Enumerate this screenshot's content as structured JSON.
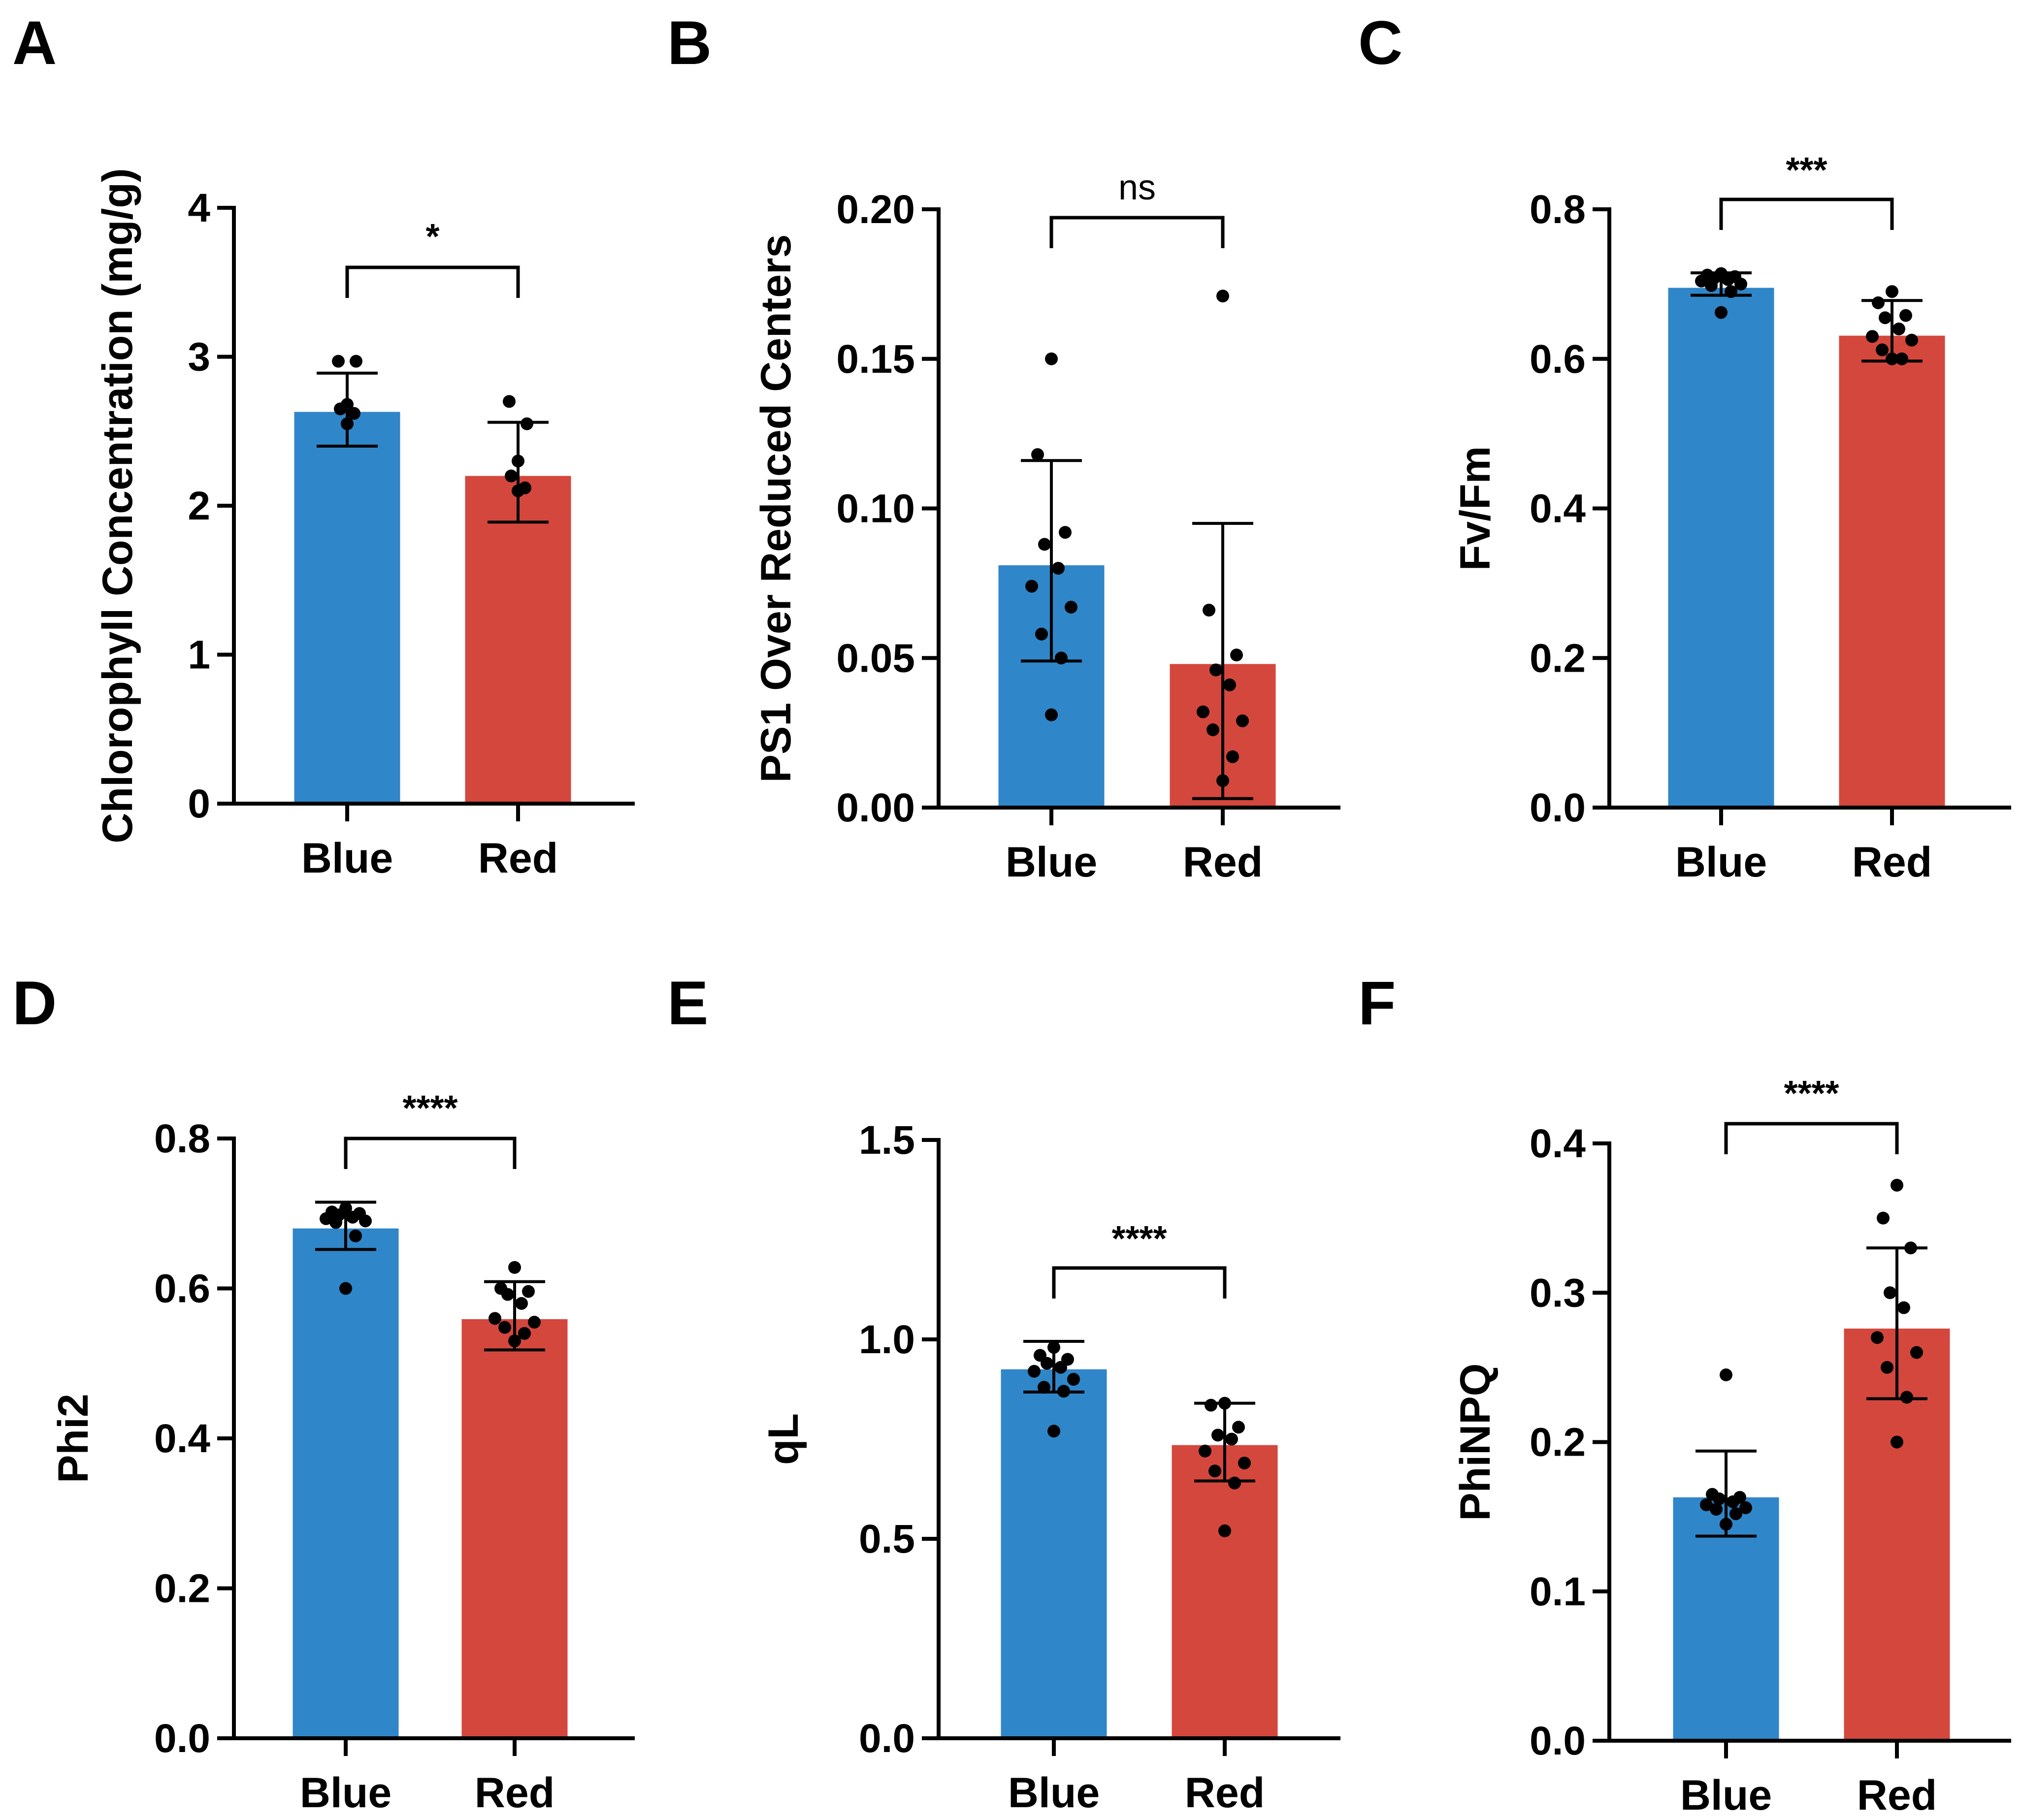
{
  "figure": {
    "colors": {
      "blue": "#2f86c9",
      "red": "#d4473d",
      "axis": "#000000"
    }
  },
  "chart_data": [
    {
      "type": "bar",
      "panel": "A",
      "categories": [
        "Blue",
        "Red"
      ],
      "values": [
        2.63,
        2.2
      ],
      "error": [
        [
          2.4,
          2.89
        ],
        [
          1.89,
          2.56
        ]
      ],
      "points": [
        [
          2.97,
          2.97,
          2.68,
          2.65,
          2.62,
          2.55
        ],
        [
          2.7,
          2.55,
          2.3,
          2.2,
          2.12,
          2.1
        ]
      ],
      "ylabel": "Chlorophyll Concentration (mg/g)",
      "ylim": [
        0,
        4
      ],
      "yticks": [
        0,
        1,
        2,
        3,
        4
      ],
      "ytick_labels": [
        "0",
        "1",
        "2",
        "3",
        "4"
      ],
      "significance": "*"
    },
    {
      "type": "bar",
      "panel": "B",
      "categories": [
        "Blue",
        "Red"
      ],
      "values": [
        0.081,
        0.048
      ],
      "error": [
        [
          0.049,
          0.116
        ],
        [
          0.003,
          0.095
        ]
      ],
      "points": [
        [
          0.15,
          0.118,
          0.092,
          0.088,
          0.08,
          0.074,
          0.067,
          0.058,
          0.05,
          0.031
        ],
        [
          0.171,
          0.066,
          0.051,
          0.046,
          0.041,
          0.032,
          0.029,
          0.026,
          0.017,
          0.009
        ]
      ],
      "ylabel": "PS1 Over Reduced Centers",
      "ylim": [
        0,
        0.2
      ],
      "yticks": [
        0,
        0.05,
        0.1,
        0.15,
        0.2
      ],
      "ytick_labels": [
        "0.00",
        "0.05",
        "0.10",
        "0.15",
        "0.20"
      ],
      "significance": "ns"
    },
    {
      "type": "bar",
      "panel": "C",
      "categories": [
        "Blue",
        "Red"
      ],
      "values": [
        0.695,
        0.631
      ],
      "error": [
        [
          0.685,
          0.715
        ],
        [
          0.597,
          0.678
        ]
      ],
      "points": [
        [
          0.714,
          0.712,
          0.71,
          0.708,
          0.706,
          0.704,
          0.7,
          0.698,
          0.69,
          0.662
        ],
        [
          0.69,
          0.675,
          0.658,
          0.655,
          0.64,
          0.63,
          0.625,
          0.612,
          0.6,
          0.6
        ]
      ],
      "ylabel": "Fv/Fm",
      "ylim": [
        0,
        0.8
      ],
      "yticks": [
        0,
        0.2,
        0.4,
        0.6,
        0.8
      ],
      "ytick_labels": [
        "0.0",
        "0.2",
        "0.4",
        "0.6",
        "0.8"
      ],
      "significance": "***"
    },
    {
      "type": "bar",
      "panel": "D",
      "categories": [
        "Blue",
        "Red"
      ],
      "values": [
        0.68,
        0.559
      ],
      "error": [
        [
          0.652,
          0.715
        ],
        [
          0.518,
          0.609
        ]
      ],
      "points": [
        [
          0.707,
          0.702,
          0.7,
          0.698,
          0.695,
          0.693,
          0.69,
          0.688,
          0.67,
          0.6
        ],
        [
          0.628,
          0.6,
          0.596,
          0.592,
          0.58,
          0.56,
          0.555,
          0.548,
          0.54,
          0.53
        ]
      ],
      "ylabel": "Phi2",
      "ylim": [
        0,
        0.8
      ],
      "yticks": [
        0,
        0.2,
        0.4,
        0.6,
        0.8
      ],
      "ytick_labels": [
        "0.0",
        "0.2",
        "0.4",
        "0.6",
        "0.8"
      ],
      "significance": "****"
    },
    {
      "type": "bar",
      "panel": "E",
      "categories": [
        "Blue",
        "Red"
      ],
      "values": [
        0.925,
        0.735
      ],
      "error": [
        [
          0.868,
          0.995
        ],
        [
          0.645,
          0.84
        ]
      ],
      "points": [
        [
          0.98,
          0.96,
          0.95,
          0.94,
          0.93,
          0.92,
          0.9,
          0.88,
          0.87,
          0.77
        ],
        [
          0.84,
          0.835,
          0.78,
          0.76,
          0.75,
          0.72,
          0.69,
          0.67,
          0.64,
          0.52
        ]
      ],
      "ylabel": "qL",
      "ylim": [
        0,
        1.5
      ],
      "yticks": [
        0,
        0.5,
        1.0,
        1.5
      ],
      "ytick_labels": [
        "0.0",
        "0.5",
        "1.0",
        "1.5"
      ],
      "significance": "****"
    },
    {
      "type": "bar",
      "panel": "F",
      "categories": [
        "Blue",
        "Red"
      ],
      "values": [
        0.163,
        0.276
      ],
      "error": [
        [
          0.137,
          0.194
        ],
        [
          0.229,
          0.33
        ]
      ],
      "points": [
        [
          0.245,
          0.165,
          0.163,
          0.162,
          0.16,
          0.158,
          0.156,
          0.155,
          0.152,
          0.145
        ],
        [
          0.372,
          0.35,
          0.33,
          0.3,
          0.29,
          0.27,
          0.26,
          0.25,
          0.23,
          0.2
        ]
      ],
      "ylabel": "PhiNPQ",
      "ylim": [
        0,
        0.4
      ],
      "yticks": [
        0,
        0.1,
        0.2,
        0.3,
        0.4
      ],
      "ytick_labels": [
        "0.0",
        "0.1",
        "0.2",
        "0.3",
        "0.4"
      ],
      "significance": "****"
    }
  ]
}
